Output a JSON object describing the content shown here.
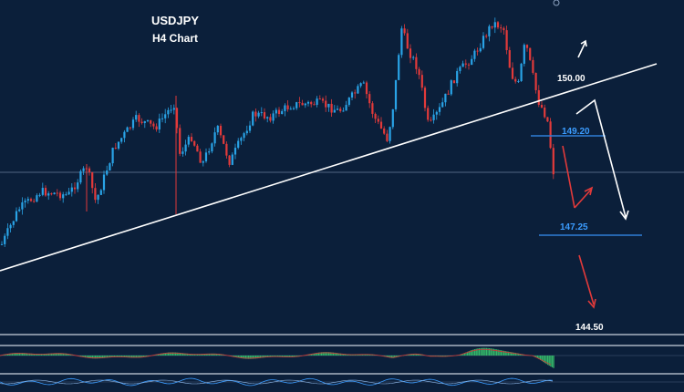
{
  "chart_data": {
    "type": "candlestick",
    "title": "USDJPY",
    "subtitle": "H4 Chart",
    "colors": {
      "background": "#0b1f3a",
      "up": "#29a3e6",
      "down": "#e23a3a",
      "trendline": "#ffffff",
      "level_line": "#2f7fd6",
      "osc_up": "#35b86a",
      "osc_down": "#c43a3a"
    },
    "levels": [
      {
        "label": "150.00",
        "color": "#ffffff",
        "has_line": false
      },
      {
        "label": "149.20",
        "color": "#3b9cff",
        "has_line": true
      },
      {
        "label": "147.25",
        "color": "#3b9cff",
        "has_line": true
      },
      {
        "label": "144.50",
        "color": "#ffffff",
        "has_line": false
      }
    ],
    "trendline": "ascending support (broken)",
    "scenario_arrows": [
      {
        "color": "white",
        "direction": "up"
      },
      {
        "color": "white",
        "direction": "down"
      },
      {
        "color": "red",
        "direction": "down"
      },
      {
        "color": "red",
        "direction": "up"
      },
      {
        "color": "red",
        "direction": "down"
      }
    ],
    "indicator_panels": 2
  }
}
